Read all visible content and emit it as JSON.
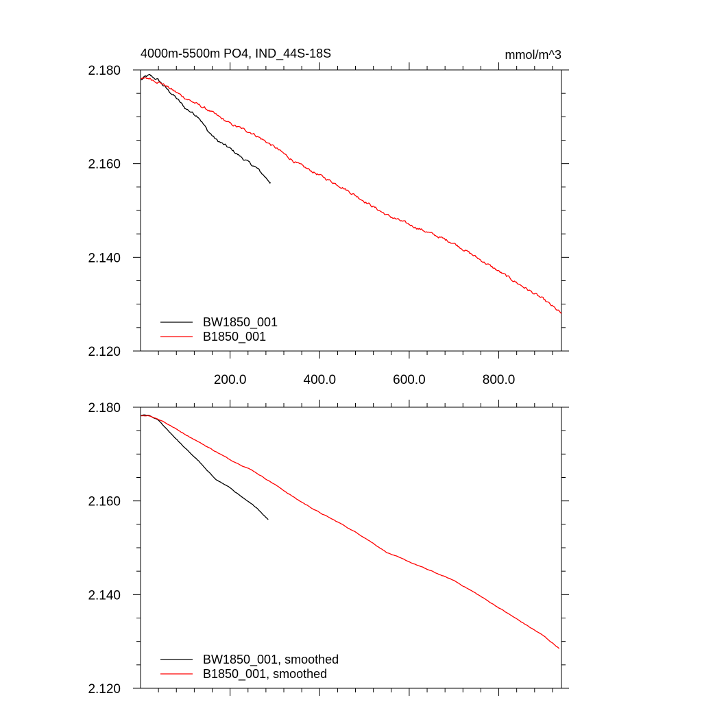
{
  "chart_data": [
    {
      "type": "line",
      "title": "4000m-5500m PO4, IND_44S-18S",
      "units": "mmol/m^3",
      "xlim": [
        0,
        940
      ],
      "ylim": [
        2.12,
        2.18
      ],
      "x_ticks": [
        200,
        400,
        600,
        800
      ],
      "x_tick_labels": [
        "200.0",
        "400.0",
        "600.0",
        "800.0"
      ],
      "y_ticks": [
        2.12,
        2.14,
        2.16,
        2.18
      ],
      "y_tick_labels": [
        "2.120",
        "2.140",
        "2.160",
        "2.180"
      ],
      "grid": false,
      "legend_position": "bottom-left",
      "series": [
        {
          "name": "BW1850_001",
          "color": "#000000",
          "x": [
            1,
            10,
            20,
            40,
            60,
            80,
            100,
            130,
            150,
            170,
            200,
            230,
            260,
            290
          ],
          "y": [
            2.1778,
            2.1785,
            2.1788,
            2.1778,
            2.1758,
            2.174,
            2.1718,
            2.17,
            2.167,
            2.165,
            2.1632,
            2.161,
            2.159,
            2.156
          ]
        },
        {
          "name": "B1850_001",
          "color": "#ff0000",
          "x": [
            1,
            20,
            50,
            100,
            150,
            200,
            250,
            300,
            350,
            400,
            450,
            500,
            550,
            600,
            650,
            700,
            750,
            800,
            850,
            900,
            940
          ],
          "y": [
            2.178,
            2.1782,
            2.177,
            2.174,
            2.1715,
            2.1685,
            2.1665,
            2.1635,
            2.16,
            2.1575,
            2.155,
            2.152,
            2.149,
            2.147,
            2.145,
            2.143,
            2.14,
            2.137,
            2.134,
            2.131,
            2.128
          ]
        }
      ]
    },
    {
      "type": "line",
      "xlim": [
        0,
        940
      ],
      "ylim": [
        2.12,
        2.18
      ],
      "y_ticks": [
        2.12,
        2.14,
        2.16,
        2.18
      ],
      "y_tick_labels": [
        "2.120",
        "2.140",
        "2.160",
        "2.180"
      ],
      "grid": false,
      "legend_position": "bottom-left",
      "series": [
        {
          "name": "BW1850_001, smoothed",
          "color": "#000000",
          "x": [
            1,
            10,
            20,
            40,
            60,
            80,
            100,
            130,
            150,
            170,
            200,
            230,
            260,
            285
          ],
          "y": [
            2.1782,
            2.1783,
            2.1782,
            2.1772,
            2.1752,
            2.1732,
            2.1712,
            2.1685,
            2.1663,
            2.1645,
            2.1628,
            2.1605,
            2.1585,
            2.156
          ]
        },
        {
          "name": "B1850_001, smoothed",
          "color": "#ff0000",
          "x": [
            1,
            20,
            50,
            100,
            150,
            200,
            250,
            300,
            350,
            400,
            450,
            500,
            550,
            600,
            650,
            700,
            750,
            800,
            850,
            900,
            935
          ],
          "y": [
            2.1782,
            2.1782,
            2.177,
            2.1742,
            2.1715,
            2.1688,
            2.1665,
            2.1635,
            2.1603,
            2.1575,
            2.155,
            2.1522,
            2.149,
            2.147,
            2.145,
            2.143,
            2.1402,
            2.1372,
            2.1342,
            2.1312,
            2.1285
          ]
        }
      ]
    }
  ]
}
